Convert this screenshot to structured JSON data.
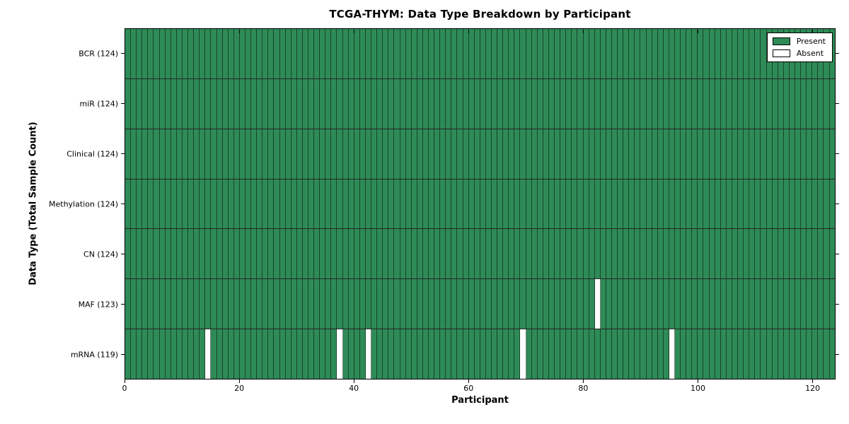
{
  "chart_data": {
    "type": "heatmap",
    "title": "TCGA-THYM: Data Type Breakdown by Participant",
    "xlabel": "Participant",
    "ylabel": "Data Type (Total Sample Count)",
    "n_participants": 124,
    "xlim": [
      0,
      124
    ],
    "xticks": [
      0,
      20,
      40,
      60,
      80,
      100,
      120
    ],
    "grid": false,
    "legend": {
      "position": "upper right",
      "entries": [
        {
          "label": "Present",
          "color": "#2e8b57"
        },
        {
          "label": "Absent",
          "color": "#ffffff"
        }
      ]
    },
    "rows": [
      {
        "name": "BCR",
        "total": 124,
        "label": "BCR (124)",
        "absent_participants": []
      },
      {
        "name": "miR",
        "total": 124,
        "label": "miR (124)",
        "absent_participants": []
      },
      {
        "name": "Clinical",
        "total": 124,
        "label": "Clinical (124)",
        "absent_participants": []
      },
      {
        "name": "Methylation",
        "total": 124,
        "label": "Methylation (124)",
        "absent_participants": []
      },
      {
        "name": "CN",
        "total": 124,
        "label": "CN (124)",
        "absent_participants": []
      },
      {
        "name": "MAF",
        "total": 123,
        "label": "MAF (123)",
        "absent_participants": [
          82
        ]
      },
      {
        "name": "mRNA",
        "total": 119,
        "label": "mRNA (119)",
        "absent_participants": [
          14,
          37,
          42,
          69,
          95
        ]
      }
    ],
    "colors": {
      "present": "#2e8b57",
      "absent": "#ffffff",
      "cell_edge": "rgba(0,0,0,0.5)",
      "row_divider": "#000000",
      "axis": "#000000"
    }
  }
}
